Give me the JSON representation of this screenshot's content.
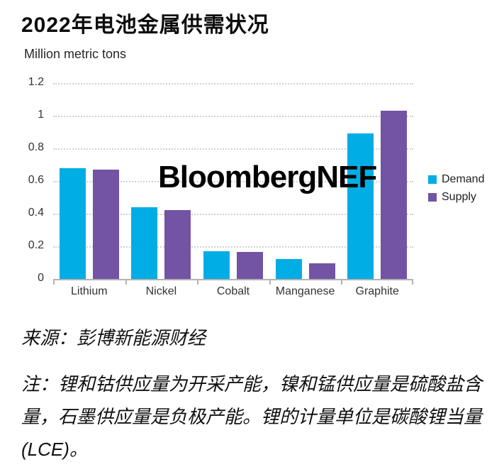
{
  "title": "2022年电池金属供需状况",
  "watermark": "BloombergNEF",
  "source": "来源：彭博新能源财经",
  "note": "注：锂和钴供应量为开采产能，镍和锰供应量是硫酸盐含量，石墨供应量是负极产能。锂的计量单位是碳酸锂当量(LCE)。",
  "colors": {
    "demand": "#00ade4",
    "supply": "#7253a4",
    "gridline": "#d2d2d2",
    "axis": "#b3b3b3"
  },
  "chart_data": {
    "type": "bar",
    "title": "2022年电池金属供需状况",
    "y_axis_title": "Million metric tons",
    "xlabel": "",
    "ylabel": "Million metric tons",
    "categories": [
      "Lithium",
      "Nickel",
      "Cobalt",
      "Manganese",
      "Graphite"
    ],
    "series": [
      {
        "name": "Demand",
        "color": "#00ade4",
        "values": [
          0.68,
          0.44,
          0.17,
          0.12,
          0.89
        ]
      },
      {
        "name": "Supply",
        "color": "#7253a4",
        "values": [
          0.67,
          0.42,
          0.165,
          0.095,
          1.03
        ]
      }
    ],
    "ylim": [
      0,
      1.2
    ],
    "y_ticks": [
      0,
      0.2,
      0.4,
      0.6,
      0.8,
      1,
      1.2
    ],
    "grid": "horizontal-dotted",
    "legend_position": "right"
  }
}
